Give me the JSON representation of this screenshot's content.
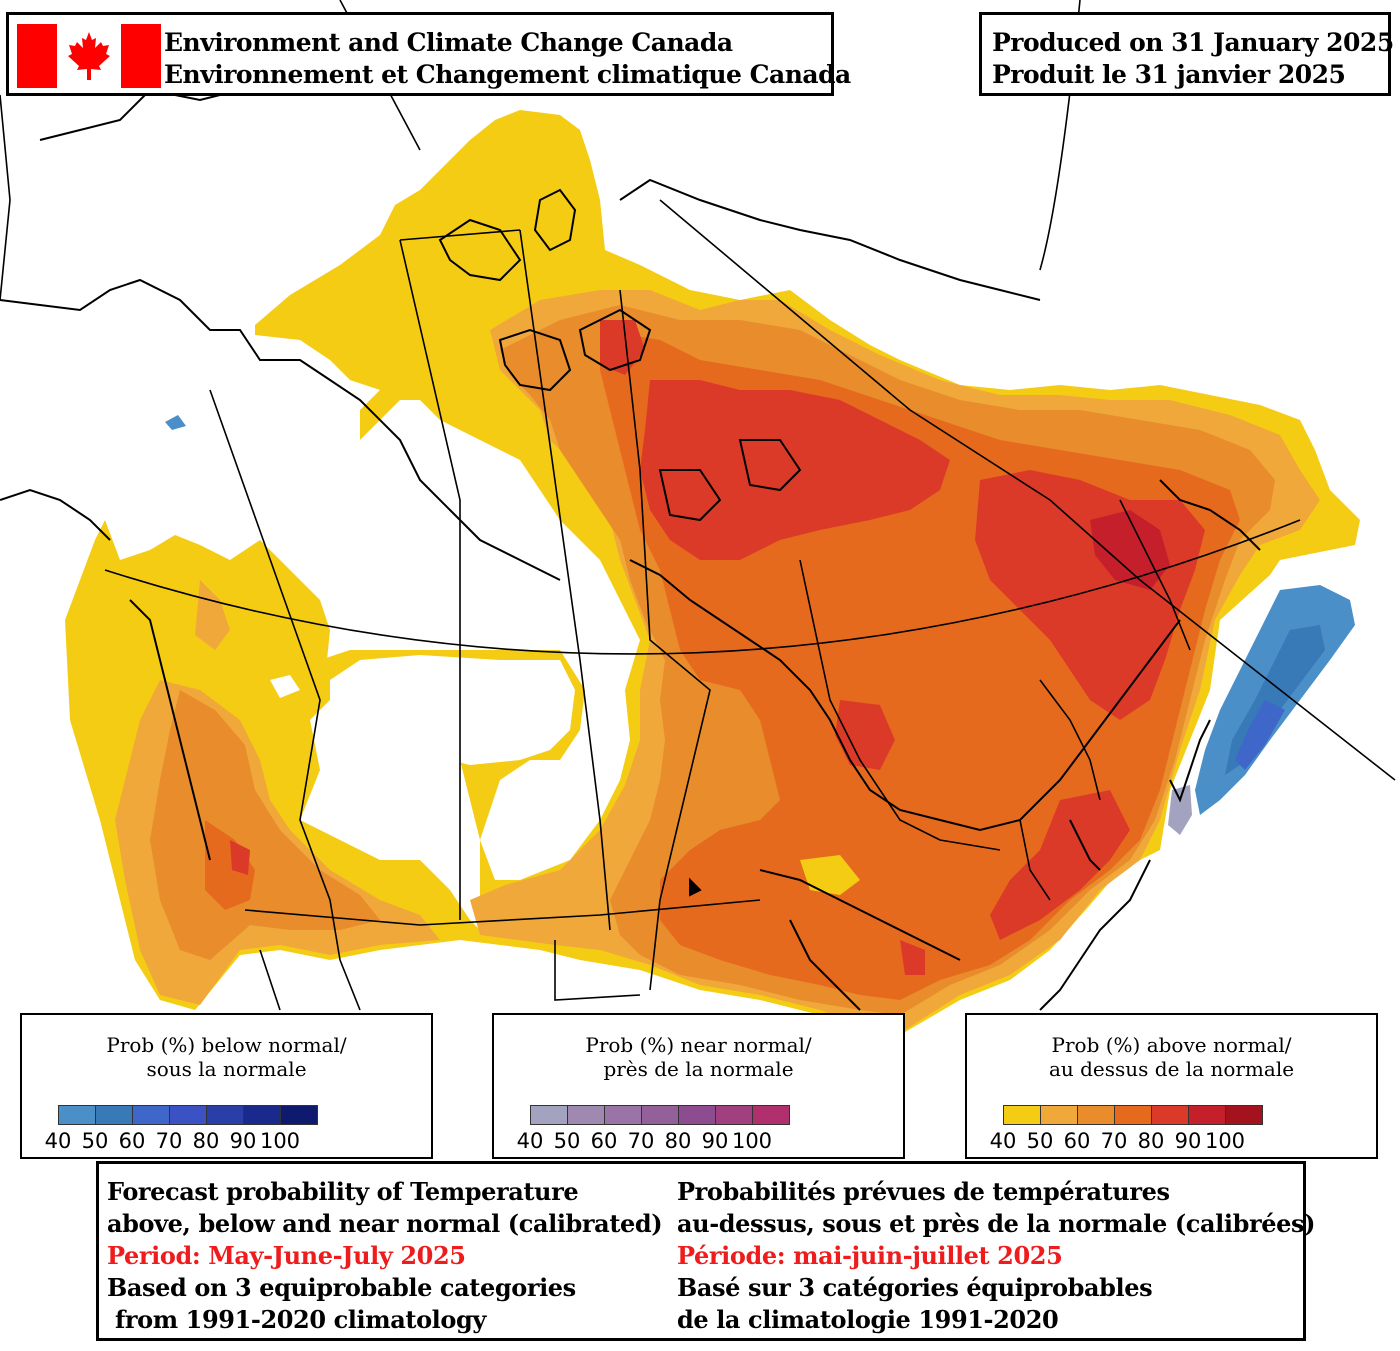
{
  "header": {
    "agency_en": "Environment and Climate Change Canada",
    "agency_fr": "Environnement et Changement climatique Canada",
    "produced_en": "Produced on 31 January 2025",
    "produced_fr": "Produit le 31 janvier 2025"
  },
  "legends": [
    {
      "title_line1": "Prob (%) below normal/",
      "title_line2": "sous la normale",
      "colors": [
        "#4a8fc8",
        "#3879b8",
        "#3f66c9",
        "#3a52c4",
        "#2a3ea8",
        "#1a2a8c",
        "#0d1a6e"
      ],
      "ticks": [
        "40",
        "50",
        "60",
        "70",
        "80",
        "90",
        "100"
      ]
    },
    {
      "title_line1": "Prob (%) near normal/",
      "title_line2": "près de la normale",
      "colors": [
        "#a3a3c0",
        "#a089b0",
        "#9a74a6",
        "#94609a",
        "#8e4c90",
        "#a0407e",
        "#b0306e"
      ],
      "ticks": [
        "40",
        "50",
        "60",
        "70",
        "80",
        "90",
        "100"
      ]
    },
    {
      "title_line1": "Prob (%) above normal/",
      "title_line2": "au dessus de la normale",
      "colors": [
        "#f5cc14",
        "#f0a83a",
        "#e88c2c",
        "#e66a1e",
        "#dc3a28",
        "#c41f2a",
        "#a4121e"
      ],
      "ticks": [
        "40",
        "50",
        "60",
        "70",
        "80",
        "90",
        "100"
      ]
    }
  ],
  "forecast": {
    "en": {
      "line1": "Forecast probability of Temperature",
      "line2": "above, below and near normal (calibrated)",
      "period": "Period: May-June-July 2025",
      "line4": "Based on 3 equiprobable categories",
      "line5": " from 1991-2020 climatology"
    },
    "fr": {
      "line1": "Probabilités prévues de températures",
      "line2": "au-dessus, sous et près de la normale (calibrées)",
      "period": "Période: mai-juin-juillet 2025",
      "line4": "Basé sur 3 catégories équiprobables",
      "line5": "de la climatologie 1991-2020"
    }
  },
  "palette": {
    "above_40": "#f5cc14",
    "above_50": "#f0a83a",
    "above_60": "#e88c2c",
    "above_70": "#e66a1e",
    "above_80": "#dc3a28",
    "above_90": "#c41f2a",
    "below_40": "#4a8fc8",
    "below_50": "#3879b8",
    "below_60": "#3f66c9",
    "near_40": "#a3a3c0",
    "flag_red": "#ff0000"
  }
}
